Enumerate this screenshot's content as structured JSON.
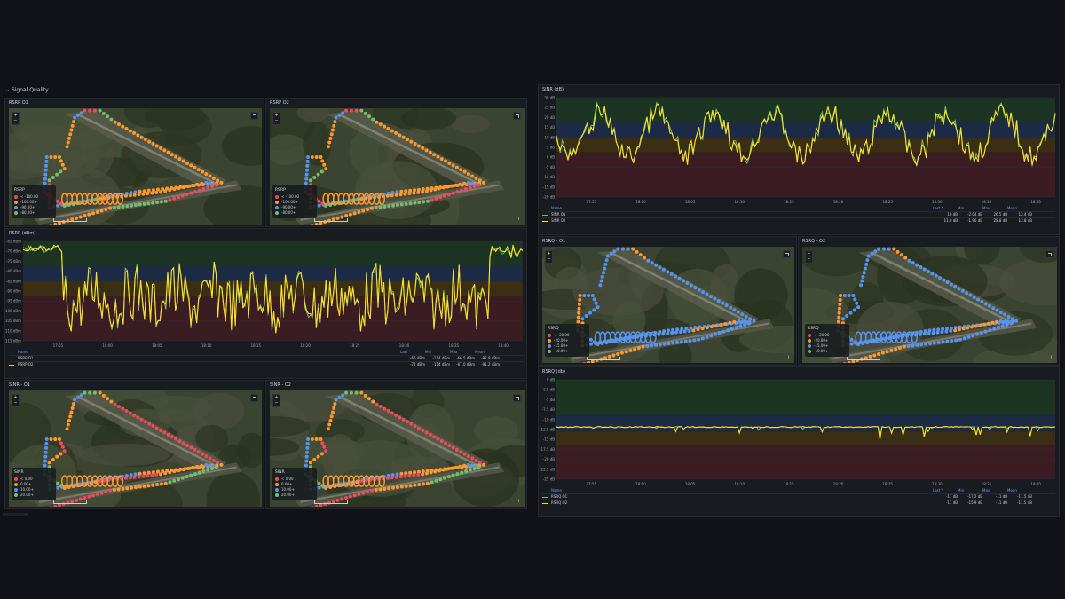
{
  "row_title": "Signal Quality",
  "colors": {
    "green": "#73bf69",
    "yellow": "#fade2a",
    "blue": "#5794f2",
    "orange": "#ff9830",
    "red": "#f2495c"
  },
  "maps": [
    {
      "id": "rsrp_o1",
      "title": "RSRP O1",
      "legend_title": "RSRP",
      "legend": [
        {
          "label": "< -100.00",
          "color": "#f2495c"
        },
        {
          "label": "-100.00+",
          "color": "#ff9830"
        },
        {
          "label": "-90.00+",
          "color": "#5794f2"
        },
        {
          "label": "-80.00+",
          "color": "#73bf69"
        }
      ]
    },
    {
      "id": "rsrp_o2",
      "title": "RSRP O2",
      "legend_title": "RSRP",
      "legend": [
        {
          "label": "< -100.00",
          "color": "#f2495c"
        },
        {
          "label": "-100.00+",
          "color": "#ff9830"
        },
        {
          "label": "-90.00+",
          "color": "#5794f2"
        },
        {
          "label": "-80.00+",
          "color": "#73bf69"
        }
      ]
    },
    {
      "id": "sinr_o1",
      "title": "SINR - O1",
      "legend_title": "SINR",
      "legend": [
        {
          "label": "< 0.00",
          "color": "#f2495c"
        },
        {
          "label": "0.00+",
          "color": "#ff9830"
        },
        {
          "label": "10.00+",
          "color": "#5794f2"
        },
        {
          "label": "20.00+",
          "color": "#73bf69"
        }
      ]
    },
    {
      "id": "sinr_o2",
      "title": "SINR - O2",
      "legend_title": "SINR",
      "legend": [
        {
          "label": "< 0.00",
          "color": "#f2495c"
        },
        {
          "label": "0.00+",
          "color": "#ff9830"
        },
        {
          "label": "10.00+",
          "color": "#5794f2"
        },
        {
          "label": "20.00+",
          "color": "#73bf69"
        }
      ]
    },
    {
      "id": "rsrq_o1",
      "title": "RSRQ - O1",
      "legend_title": "RSRQ",
      "legend": [
        {
          "label": "< -20.00",
          "color": "#f2495c"
        },
        {
          "label": "-20.00+",
          "color": "#ff9830"
        },
        {
          "label": "-15.00+",
          "color": "#5794f2"
        },
        {
          "label": "-10.00+",
          "color": "#73bf69"
        }
      ]
    },
    {
      "id": "rsrq_o2",
      "title": "RSRQ - O2",
      "legend_title": "RSRQ",
      "legend": [
        {
          "label": "< -20.00",
          "color": "#f2495c"
        },
        {
          "label": "-20.00+",
          "color": "#ff9830"
        },
        {
          "label": "-15.00+",
          "color": "#5794f2"
        },
        {
          "label": "-10.00+",
          "color": "#73bf69"
        }
      ]
    }
  ],
  "timeseries": [
    {
      "id": "rsrp_ts",
      "title": "RSRP (dBm)",
      "y_ticks": [
        "-65 dBm",
        "-70 dBm",
        "-75 dBm",
        "-80 dBm",
        "-85 dBm",
        "-90 dBm",
        "-95 dBm",
        "-100 dBm",
        "-105 dBm",
        "-110 dBm",
        "-115 dBm"
      ],
      "x_ticks": [
        "17:55",
        "18:00",
        "18:05",
        "18:10",
        "18:15",
        "18:20",
        "18:25",
        "18:30",
        "18:35",
        "18:40"
      ],
      "legend_headers": [
        "Name",
        "Last *",
        "Min",
        "Max",
        "Mean"
      ],
      "series": [
        {
          "name": "RSRP O1",
          "color": "#73bf69",
          "last": "-66 dBm",
          "min": "-114 dBm",
          "max": "-66.5 dBm",
          "mean": "-92.9 dBm"
        },
        {
          "name": "RSRP O2",
          "color": "#fade2a",
          "last": "-72 dBm",
          "min": "-114 dBm",
          "max": "-67.0 dBm",
          "mean": "-91.2 dBm"
        }
      ]
    },
    {
      "id": "sinr_ts",
      "title": "SINR (dB)",
      "y_ticks": [
        "30 dB",
        "25 dB",
        "20 dB",
        "15 dB",
        "10 dB",
        "5 dB",
        "0 dB",
        "-5 dB",
        "-10 dB",
        "-15 dB",
        "-20 dB"
      ],
      "x_ticks": [
        "17:55",
        "18:00",
        "18:05",
        "18:10",
        "18:15",
        "18:20",
        "18:25",
        "18:30",
        "18:35",
        "18:40"
      ],
      "legend_headers": [
        "Name",
        "Last *",
        "Min",
        "Max",
        "Mean"
      ],
      "series": [
        {
          "name": "SINR O1",
          "color": "#73bf69",
          "last": "16 dB",
          "min": "-2.04 dB",
          "max": "26.5 dB",
          "mean": "12.4 dB"
        },
        {
          "name": "SINR O2",
          "color": "#fade2a",
          "last": "11.6 dB",
          "min": "-1.96 dB",
          "max": "28.8 dB",
          "mean": "12.8 dB"
        }
      ]
    },
    {
      "id": "rsrq_ts",
      "title": "RSRQ (db)",
      "y_ticks": [
        "0 dB",
        "-2.5 dB",
        "-5 dB",
        "-7.5 dB",
        "-10 dB",
        "-12.5 dB",
        "-15 dB",
        "-17.5 dB",
        "-20 dB",
        "-22.5 dB",
        "-25 dB"
      ],
      "x_ticks": [
        "17:55",
        "18:00",
        "18:05",
        "18:10",
        "18:15",
        "18:20",
        "18:25",
        "18:30",
        "18:35",
        "18:40"
      ],
      "legend_headers": [
        "Name",
        "Last *",
        "Min",
        "Max",
        "Mean"
      ],
      "series": [
        {
          "name": "RSRQ O1",
          "color": "#73bf69",
          "last": "-11 dB",
          "min": "-17.2 dB",
          "max": "-11 dB",
          "mean": "-11.5 dB"
        },
        {
          "name": "RSRQ O2",
          "color": "#fade2a",
          "last": "-11 dB",
          "min": "-15.9 dB",
          "max": "-11 dB",
          "mean": "-11.5 dB"
        }
      ]
    }
  ]
}
